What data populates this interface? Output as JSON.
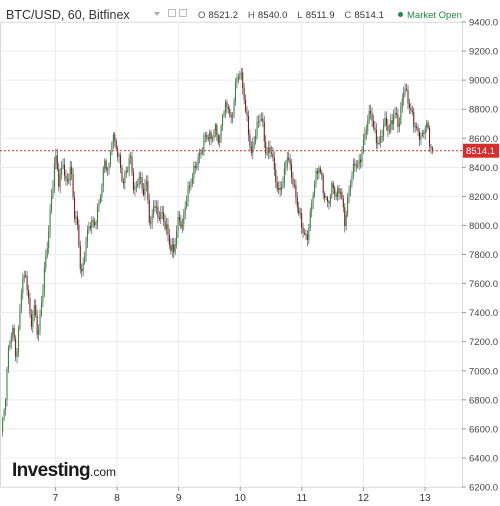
{
  "header": {
    "symbol": "BTC/USD, 60, Bitfinex",
    "ohlc": [
      {
        "k": "O",
        "v": "8521.2"
      },
      {
        "k": "H",
        "v": "8540.0"
      },
      {
        "k": "L",
        "v": "8511.9"
      },
      {
        "k": "C",
        "v": "8514.1"
      }
    ],
    "market_status": "Market Open",
    "market_color": "#1a8f3e"
  },
  "logo": {
    "brand": "Investing",
    "tld": ".com"
  },
  "chart_data": {
    "type": "candlestick",
    "ylim": [
      6200,
      9400
    ],
    "y_ticks": [
      "9400.0",
      "9200.0",
      "9000.0",
      "8800.0",
      "8600.0",
      "8400.0",
      "8200.0",
      "8000.0",
      "7800.0",
      "7600.0",
      "7400.0",
      "7200.0",
      "7000.0",
      "6800.0",
      "6600.0",
      "6400.0",
      "6200.0"
    ],
    "x_ticks": [
      {
        "label": "7",
        "x": 7
      },
      {
        "label": "8",
        "x": 8
      },
      {
        "label": "9",
        "x": 9
      },
      {
        "label": "10",
        "x": 10
      },
      {
        "label": "11",
        "x": 11
      },
      {
        "label": "12",
        "x": 12
      },
      {
        "label": "13",
        "x": 13
      }
    ],
    "xlim": [
      6.1,
      13.6
    ],
    "last_price": {
      "value": 8514.1,
      "label": "8514.1",
      "color": "#d32f2f"
    },
    "up_color": "#2e8b3a",
    "down_color": "#7a1c1c",
    "grid": true,
    "close_path": [
      [
        6.12,
        6580
      ],
      [
        6.18,
        6750
      ],
      [
        6.24,
        7150
      ],
      [
        6.3,
        7300
      ],
      [
        6.37,
        7100
      ],
      [
        6.45,
        7600
      ],
      [
        6.52,
        7650
      ],
      [
        6.6,
        7300
      ],
      [
        6.66,
        7450
      ],
      [
        6.72,
        7250
      ],
      [
        6.8,
        7600
      ],
      [
        6.88,
        7900
      ],
      [
        6.94,
        8200
      ],
      [
        7.0,
        8500
      ],
      [
        7.06,
        8300
      ],
      [
        7.12,
        8450
      ],
      [
        7.18,
        8250
      ],
      [
        7.25,
        8400
      ],
      [
        7.3,
        8100
      ],
      [
        7.36,
        8000
      ],
      [
        7.42,
        7650
      ],
      [
        7.5,
        7900
      ],
      [
        7.56,
        8000
      ],
      [
        7.64,
        8000
      ],
      [
        7.72,
        8200
      ],
      [
        7.8,
        8450
      ],
      [
        7.86,
        8350
      ],
      [
        7.92,
        8600
      ],
      [
        7.98,
        8550
      ],
      [
        8.04,
        8450
      ],
      [
        8.1,
        8300
      ],
      [
        8.16,
        8400
      ],
      [
        8.22,
        8450
      ],
      [
        8.28,
        8200
      ],
      [
        8.36,
        8350
      ],
      [
        8.42,
        8250
      ],
      [
        8.48,
        8300
      ],
      [
        8.54,
        7950
      ],
      [
        8.6,
        8150
      ],
      [
        8.66,
        8050
      ],
      [
        8.72,
        8100
      ],
      [
        8.8,
        8000
      ],
      [
        8.86,
        7850
      ],
      [
        8.92,
        7800
      ],
      [
        9.0,
        8050
      ],
      [
        9.06,
        8000
      ],
      [
        9.12,
        8200
      ],
      [
        9.2,
        8300
      ],
      [
        9.28,
        8400
      ],
      [
        9.36,
        8500
      ],
      [
        9.44,
        8650
      ],
      [
        9.52,
        8600
      ],
      [
        9.6,
        8650
      ],
      [
        9.66,
        8550
      ],
      [
        9.72,
        8800
      ],
      [
        9.8,
        8850
      ],
      [
        9.86,
        8700
      ],
      [
        9.92,
        8950
      ],
      [
        10.0,
        9050
      ],
      [
        10.06,
        8900
      ],
      [
        10.12,
        8700
      ],
      [
        10.18,
        8500
      ],
      [
        10.26,
        8650
      ],
      [
        10.34,
        8750
      ],
      [
        10.42,
        8500
      ],
      [
        10.5,
        8550
      ],
      [
        10.56,
        8350
      ],
      [
        10.62,
        8200
      ],
      [
        10.7,
        8300
      ],
      [
        10.76,
        8500
      ],
      [
        10.82,
        8400
      ],
      [
        10.88,
        8250
      ],
      [
        10.96,
        8050
      ],
      [
        11.02,
        7950
      ],
      [
        11.08,
        7900
      ],
      [
        11.14,
        8100
      ],
      [
        11.2,
        8300
      ],
      [
        11.28,
        8400
      ],
      [
        11.36,
        8200
      ],
      [
        11.42,
        8150
      ],
      [
        11.5,
        8300
      ],
      [
        11.56,
        8200
      ],
      [
        11.62,
        8250
      ],
      [
        11.7,
        8000
      ],
      [
        11.78,
        8300
      ],
      [
        11.86,
        8450
      ],
      [
        11.92,
        8400
      ],
      [
        11.98,
        8500
      ],
      [
        12.06,
        8700
      ],
      [
        12.12,
        8800
      ],
      [
        12.18,
        8650
      ],
      [
        12.26,
        8550
      ],
      [
        12.34,
        8700
      ],
      [
        12.42,
        8650
      ],
      [
        12.5,
        8800
      ],
      [
        12.58,
        8700
      ],
      [
        12.66,
        8950
      ],
      [
        12.72,
        8850
      ],
      [
        12.8,
        8750
      ],
      [
        12.88,
        8650
      ],
      [
        12.96,
        8600
      ],
      [
        13.02,
        8700
      ],
      [
        13.08,
        8550
      ],
      [
        13.12,
        8514
      ]
    ]
  }
}
